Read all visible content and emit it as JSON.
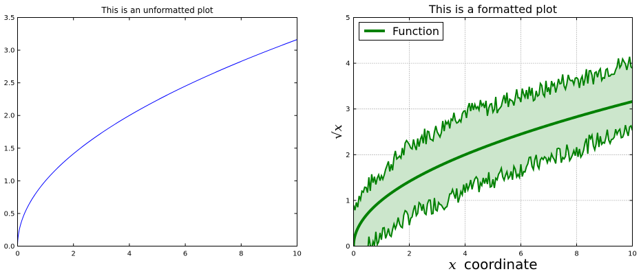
{
  "chart_data": [
    {
      "type": "line",
      "title": "This is an unformatted plot",
      "xlim": [
        0,
        10
      ],
      "ylim": [
        0,
        3.5
      ],
      "xticks": [
        "0",
        "2",
        "4",
        "6",
        "8",
        "10"
      ],
      "yticks": [
        "0.0",
        "0.5",
        "1.0",
        "1.5",
        "2.0",
        "2.5",
        "3.0",
        "3.5"
      ],
      "grid": false,
      "series": [
        {
          "function": "sqrt(x)",
          "color": "#0000ff",
          "x_range": [
            0,
            10
          ]
        }
      ]
    },
    {
      "type": "line",
      "title": "This is a formatted plot",
      "xlabel_math": "x",
      "xlabel_text": "coordinate",
      "ylabel_math": "√x",
      "xlim": [
        0,
        10
      ],
      "ylim": [
        0,
        5
      ],
      "xticks": [
        "0",
        "2",
        "4",
        "6",
        "8",
        "10"
      ],
      "yticks": [
        "0",
        "1",
        "2",
        "3",
        "4",
        "5"
      ],
      "grid": true,
      "legend": {
        "location": "top-left",
        "entries": [
          "Function"
        ]
      },
      "band": {
        "description": "noisy upper and lower bounds around sqrt(x), roughly ±0.8–1.0",
        "fill_color": "#cce6cc",
        "edge_color": "#008000",
        "upper_sample": [
          [
            0,
            0.9
          ],
          [
            0.5,
            1.3
          ],
          [
            1,
            1.6
          ],
          [
            1.5,
            1.9
          ],
          [
            2,
            2.2
          ],
          [
            2.5,
            2.4
          ],
          [
            3,
            2.5
          ],
          [
            3.5,
            2.8
          ],
          [
            4,
            2.95
          ],
          [
            4.5,
            3.0
          ],
          [
            5,
            3.05
          ],
          [
            5.5,
            3.2
          ],
          [
            6,
            3.3
          ],
          [
            6.5,
            3.35
          ],
          [
            7,
            3.45
          ],
          [
            7.5,
            3.6
          ],
          [
            8,
            3.65
          ],
          [
            8.5,
            3.7
          ],
          [
            9,
            3.85
          ],
          [
            9.5,
            3.95
          ],
          [
            10,
            4.05
          ]
        ],
        "lower_sample": [
          [
            0,
            -0.3
          ],
          [
            0.5,
            0.0
          ],
          [
            1,
            0.2
          ],
          [
            1.5,
            0.45
          ],
          [
            2,
            0.65
          ],
          [
            2.5,
            0.8
          ],
          [
            3,
            0.95
          ],
          [
            3.5,
            1.05
          ],
          [
            4,
            1.2
          ],
          [
            4.5,
            1.35
          ],
          [
            5,
            1.45
          ],
          [
            5.5,
            1.6
          ],
          [
            6,
            1.7
          ],
          [
            6.5,
            1.8
          ],
          [
            7,
            1.9
          ],
          [
            7.5,
            2.0
          ],
          [
            8,
            2.1
          ],
          [
            8.5,
            2.25
          ],
          [
            9,
            2.35
          ],
          [
            9.5,
            2.45
          ],
          [
            10,
            2.55
          ]
        ]
      },
      "series": [
        {
          "name": "Function",
          "function": "sqrt(x)",
          "color": "#008000",
          "x_range": [
            0,
            10
          ]
        }
      ]
    }
  ]
}
